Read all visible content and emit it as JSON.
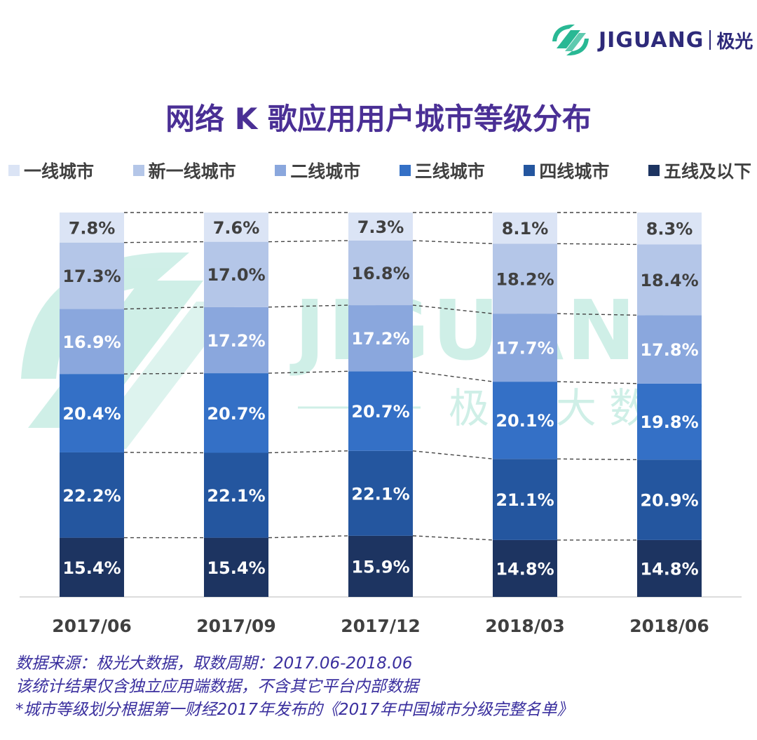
{
  "logo": {
    "brand": "JIGUANG",
    "cn": "极光"
  },
  "watermark": {
    "text": "JIGUANG",
    "sub": "极 光 大 数 据"
  },
  "colors": {
    "title": "#4a2f95",
    "footnote": "#3a2f9e",
    "label_dark": "#404040",
    "label_light": "#ffffff",
    "logo_green": "#29b894",
    "logo_navy": "#2e2a7a"
  },
  "chart_data": {
    "type": "bar",
    "stacked": true,
    "title": "网络 K 歌应用用户城市等级分布",
    "categories": [
      "2017/06",
      "2017/09",
      "2017/12",
      "2018/03",
      "2018/06"
    ],
    "series": [
      {
        "name": "五线及以下",
        "color": "#1d3461",
        "label_color": "#ffffff",
        "values": [
          15.4,
          15.4,
          15.9,
          14.8,
          14.8
        ]
      },
      {
        "name": "四线城市",
        "color": "#24569f",
        "label_color": "#ffffff",
        "values": [
          22.2,
          22.1,
          22.1,
          21.1,
          20.9
        ]
      },
      {
        "name": "三线城市",
        "color": "#3470c6",
        "label_color": "#ffffff",
        "values": [
          20.4,
          20.7,
          20.7,
          20.1,
          19.8
        ]
      },
      {
        "name": "二线城市",
        "color": "#8aa7dd",
        "label_color": "#ffffff",
        "values": [
          16.9,
          17.2,
          17.2,
          17.7,
          17.8
        ]
      },
      {
        "name": "新一线城市",
        "color": "#b4c6e8",
        "label_color": "#404040",
        "values": [
          17.3,
          17.0,
          16.8,
          18.2,
          18.4
        ]
      },
      {
        "name": "一线城市",
        "color": "#dbe4f5",
        "label_color": "#404040",
        "values": [
          7.8,
          7.6,
          7.3,
          8.1,
          8.3
        ]
      }
    ],
    "legend_order": [
      "一线城市",
      "新一线城市",
      "二线城市",
      "三线城市",
      "四线城市",
      "五线及以下"
    ],
    "value_format": "percent_1dp",
    "ylim": [
      0,
      100
    ],
    "connector_lines": "dashed"
  },
  "footnotes": [
    "数据来源：极光大数据，取数周期：2017.06-2018.06",
    "该统计结果仅含独立应用端数据，不含其它平台内部数据",
    "*城市等级划分根据第一财经2017年发布的《2017年中国城市分级完整名单》"
  ]
}
